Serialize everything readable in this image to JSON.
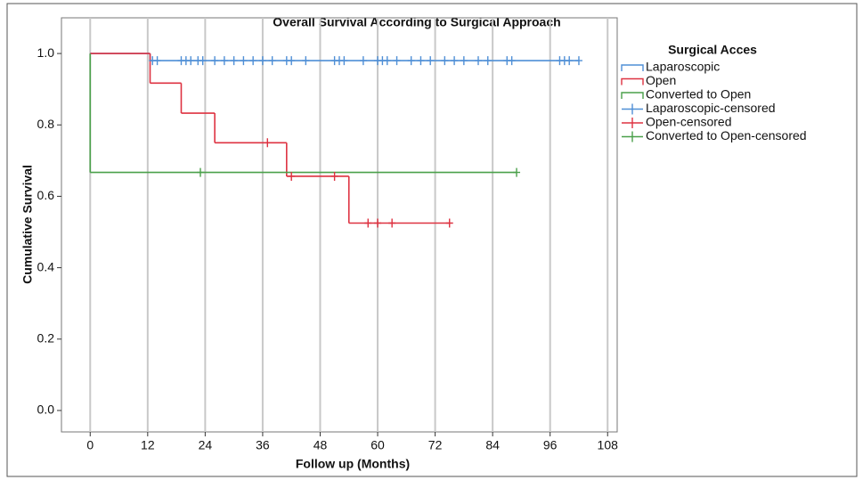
{
  "chart_data": {
    "type": "survival",
    "title": "Overall Survival According to Surgical Approach",
    "x_label": "Follow up (Months)",
    "y_label": "Cumulative Survival",
    "legend_title": "Surgical Acces",
    "xlim": [
      -6,
      110
    ],
    "ylim": [
      -0.06,
      1.1
    ],
    "xticks": [
      0,
      12,
      24,
      36,
      48,
      60,
      72,
      84,
      96,
      108
    ],
    "yticks": [
      {
        "value": 0,
        "label": "0.0"
      },
      {
        "value": 0.2,
        "label": "0.2"
      },
      {
        "value": 0.4,
        "label": "0.4"
      },
      {
        "value": 0.6,
        "label": "0.6"
      },
      {
        "value": 0.8,
        "label": "0.8"
      },
      {
        "value": 1,
        "label": "1.0"
      }
    ],
    "grid": "x",
    "series": [
      {
        "name": "Laparoscopic",
        "color": "#4f8fd6",
        "style": "step",
        "x": [
          0,
          12.5,
          102
        ],
        "values": [
          1,
          0.98,
          0.98
        ]
      },
      {
        "name": "Open",
        "color": "#de3241",
        "style": "step",
        "x": [
          0,
          12.5,
          19,
          26,
          41,
          54,
          75
        ],
        "values": [
          1,
          0.917,
          0.833,
          0.75,
          0.656,
          0.525,
          0.525
        ]
      },
      {
        "name": "Converted to Open",
        "color": "#4aa04a",
        "style": "step",
        "x": [
          0,
          0,
          89
        ],
        "values": [
          1,
          0.667,
          0.667
        ]
      },
      {
        "name": "Laparoscopic-censored",
        "color": "#4f8fd6",
        "style": "censored",
        "x": [
          13,
          14,
          19,
          20,
          21,
          22.5,
          23.5,
          26,
          28,
          30,
          32,
          34,
          36,
          38,
          41,
          42,
          45,
          51,
          52,
          53,
          57,
          60,
          61,
          62,
          64,
          67,
          69,
          71,
          74,
          76,
          78,
          81,
          83,
          87,
          88,
          98,
          99,
          100,
          102
        ],
        "values": [
          0.98,
          0.98,
          0.98,
          0.98,
          0.98,
          0.98,
          0.98,
          0.98,
          0.98,
          0.98,
          0.98,
          0.98,
          0.98,
          0.98,
          0.98,
          0.98,
          0.98,
          0.98,
          0.98,
          0.98,
          0.98,
          0.98,
          0.98,
          0.98,
          0.98,
          0.98,
          0.98,
          0.98,
          0.98,
          0.98,
          0.98,
          0.98,
          0.98,
          0.98,
          0.98,
          0.98,
          0.98,
          0.98,
          0.98
        ]
      },
      {
        "name": "Open-censored",
        "color": "#de3241",
        "style": "censored",
        "x": [
          37,
          42,
          51,
          58,
          60,
          63,
          75
        ],
        "values": [
          0.75,
          0.656,
          0.656,
          0.525,
          0.525,
          0.525,
          0.525
        ]
      },
      {
        "name": "Converted to Open-censored",
        "color": "#4aa04a",
        "style": "censored",
        "x": [
          23,
          89
        ],
        "values": [
          0.667,
          0.667
        ]
      }
    ]
  }
}
